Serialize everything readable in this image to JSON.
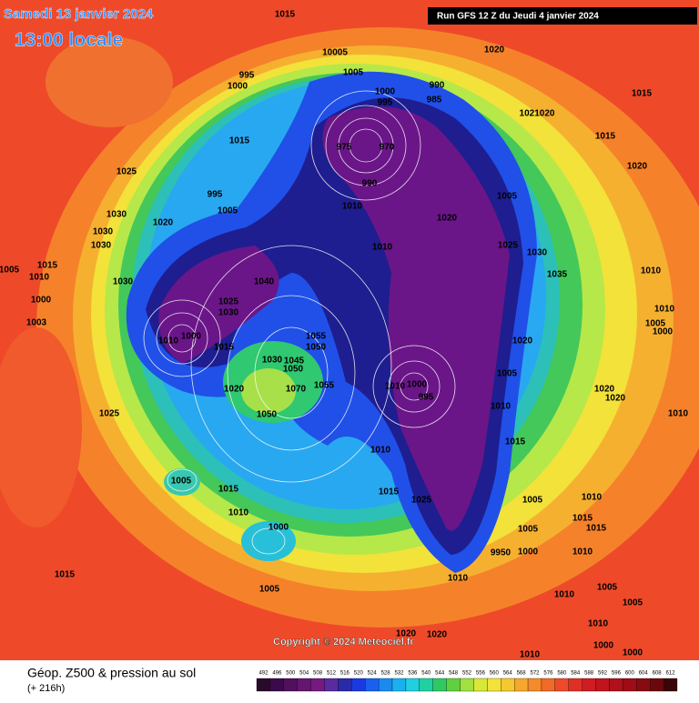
{
  "header": {
    "date": "Samedi 13 janvier 2024",
    "time": "13:00 locale",
    "run": "Run GFS 12 Z du Jeudi 4 janvier 2024"
  },
  "copyright": "Copyright © 2024 Meteociel.fr",
  "footer": {
    "title": "Géop. Z500 & pression au sol",
    "lead": "(+ 216h)"
  },
  "legend": {
    "values": [
      492,
      496,
      500,
      504,
      508,
      512,
      516,
      520,
      524,
      528,
      532,
      536,
      540,
      544,
      548,
      552,
      556,
      560,
      564,
      568,
      572,
      576,
      580,
      584,
      588,
      592,
      596,
      600,
      604,
      608,
      612
    ]
  },
  "pressure_labels": [
    "1015",
    "10005",
    "1005",
    "1020",
    "995",
    "1000",
    "990",
    "1000",
    "995",
    "985",
    "1015",
    "1021020",
    "1015",
    "1015",
    "975",
    "970",
    "1020",
    "1025",
    "990",
    "995",
    "1005",
    "1005",
    "1010",
    "1030",
    "1020",
    "1020",
    "1030",
    "1030",
    "1025",
    "1030",
    "1010",
    "1015",
    "1005",
    "1010",
    "1035",
    "1010",
    "1030",
    "1040",
    "1025",
    "1030",
    "1000",
    "1010",
    "1003",
    "1005",
    "1000",
    "1010",
    "1000",
    "1015",
    "1055",
    "1050",
    "1020",
    "1030",
    "1045",
    "1050",
    "1010",
    "1000",
    "995",
    "1005",
    "1020",
    "1070",
    "1055",
    "1010",
    "1020",
    "1020",
    "1025",
    "1010",
    "1050",
    "1015",
    "1010",
    "1005",
    "1015",
    "1015",
    "1025",
    "1005",
    "1010",
    "1010",
    "1015",
    "1000",
    "1015",
    "1005",
    "1010",
    "9950",
    "1000",
    "1015",
    "1010",
    "1005",
    "1010",
    "1005",
    "1005",
    "1010",
    "1020",
    "1020",
    "1000",
    "1000",
    "1010"
  ]
}
